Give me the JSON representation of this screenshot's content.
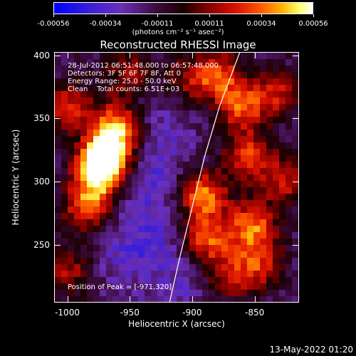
{
  "colorbar": {
    "ticks": [
      "-0.00056",
      "-0.00034",
      "-0.00011",
      "0.00011",
      "0.00034",
      "0.00056"
    ],
    "units": "(photons cm⁻² s⁻¹ asec⁻²)"
  },
  "chart_data": {
    "type": "heatmap",
    "title": "Reconstructed RHESSI Image",
    "xlabel": "Heliocentric X (arcsec)",
    "ylabel": "Heliocentric Y (arcsec)",
    "xlim": [
      -1010,
      -815
    ],
    "ylim": [
      205,
      402
    ],
    "x_ticks": [
      "-1000",
      "-950",
      "-900",
      "-850"
    ],
    "y_ticks": [
      "250",
      "300",
      "350",
      "400"
    ],
    "x_tick_values": [
      -1000,
      -950,
      -900,
      -850
    ],
    "y_tick_values": [
      250,
      300,
      350,
      400
    ],
    "color_range": [
      -0.00056,
      0.00056
    ],
    "limb_curve": [
      [
        -918,
        205
      ],
      [
        -910,
        240
      ],
      [
        -900,
        280
      ],
      [
        -890,
        320
      ],
      [
        -878,
        360
      ],
      [
        -862,
        402
      ]
    ],
    "peak": [
      -971,
      320
    ],
    "hot_spots": [
      {
        "x": -968,
        "y": 323,
        "intensity": 1.0
      },
      {
        "x": -975,
        "y": 305,
        "intensity": 0.8
      },
      {
        "x": -960,
        "y": 345,
        "intensity": 0.7
      },
      {
        "x": -1000,
        "y": 360,
        "intensity": 0.55
      },
      {
        "x": -985,
        "y": 280,
        "intensity": 0.6
      },
      {
        "x": -1000,
        "y": 230,
        "intensity": 0.45
      },
      {
        "x": -950,
        "y": 385,
        "intensity": 0.5
      },
      {
        "x": -892,
        "y": 290,
        "intensity": 0.75
      },
      {
        "x": -888,
        "y": 255,
        "intensity": 0.65
      },
      {
        "x": -880,
        "y": 385,
        "intensity": 0.6
      },
      {
        "x": -860,
        "y": 360,
        "intensity": 0.65
      },
      {
        "x": -855,
        "y": 320,
        "intensity": 0.6
      },
      {
        "x": -852,
        "y": 265,
        "intensity": 0.7
      },
      {
        "x": -845,
        "y": 235,
        "intensity": 0.5
      },
      {
        "x": -825,
        "y": 300,
        "intensity": 0.5
      },
      {
        "x": -830,
        "y": 370,
        "intensity": 0.45
      },
      {
        "x": -870,
        "y": 225,
        "intensity": 0.45
      },
      {
        "x": -905,
        "y": 380,
        "intensity": 0.35
      }
    ],
    "cold_spots": [
      {
        "x": -940,
        "y": 300,
        "intensity": 0.6
      },
      {
        "x": -930,
        "y": 260,
        "intensity": 0.55
      },
      {
        "x": -955,
        "y": 240,
        "intensity": 0.5
      },
      {
        "x": -920,
        "y": 330,
        "intensity": 0.45
      },
      {
        "x": -935,
        "y": 370,
        "intensity": 0.4
      },
      {
        "x": -910,
        "y": 220,
        "intensity": 0.45
      }
    ]
  },
  "info": {
    "time_range": "28-Jul-2012 06:51:48.000 to 06:57:48.000",
    "detectors": "Detectors: 3F 5F 6F 7F 8F, Att 0",
    "energy": "Energy Range: 25.0 - 50.0 keV",
    "method": "Clean    Total counts: 6.51E+03",
    "peak_label": "Position of Peak = [-971,320]"
  },
  "timestamp": "13-May-2022 01:20"
}
